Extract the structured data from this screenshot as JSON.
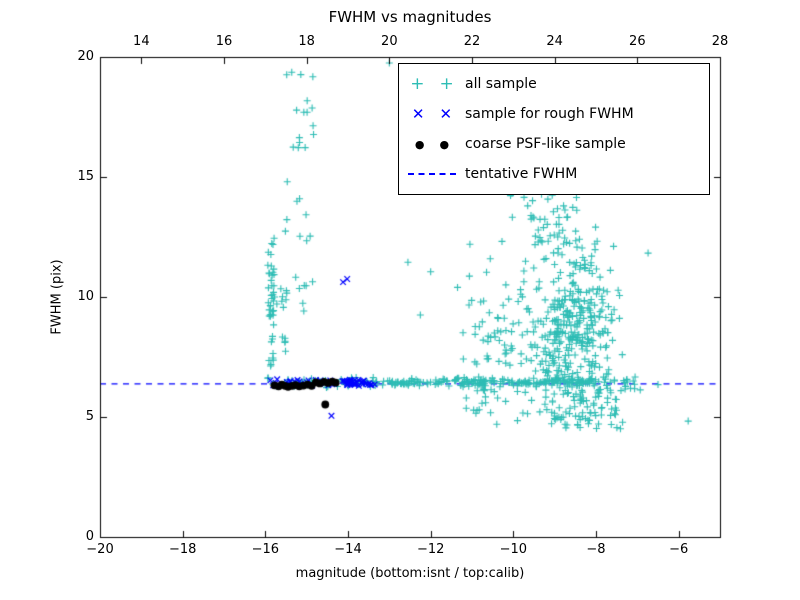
{
  "chart_data": {
    "type": "scatter",
    "title": "FWHM vs magnitudes",
    "xlabel": "magnitude (bottom:isnt / top:calib)",
    "ylabel": "FWHM (pix)",
    "bottom_axis": {
      "lim": [
        -20,
        -5
      ],
      "ticks": [
        -20,
        -18,
        -16,
        -14,
        -12,
        -10,
        -8,
        -6
      ],
      "tick_labels": [
        "−20",
        "−18",
        "−16",
        "−14",
        "−12",
        "−10",
        "−8",
        "−6"
      ]
    },
    "top_axis": {
      "lim": [
        13,
        28
      ],
      "ticks": [
        14,
        16,
        18,
        20,
        22,
        24,
        26,
        28
      ],
      "tick_labels": [
        "14",
        "16",
        "18",
        "20",
        "22",
        "24",
        "26",
        "28"
      ]
    },
    "y_axis": {
      "lim": [
        0,
        20
      ],
      "ticks": [
        0,
        5,
        10,
        15,
        20
      ],
      "tick_labels": [
        "0",
        "5",
        "10",
        "15",
        "20"
      ]
    },
    "reference_line": {
      "label": "tentative FWHM",
      "y": 6.4,
      "color": "#0000ff",
      "style": "dashed"
    },
    "legend": [
      {
        "label": "all sample",
        "marker": "plus",
        "color": "#2ebdb5"
      },
      {
        "label": "sample for rough FWHM",
        "marker": "cross",
        "color": "#0000ff"
      },
      {
        "label": "coarse PSF-like sample",
        "marker": "dot",
        "color": "#000000"
      },
      {
        "label": "tentative FWHM",
        "marker": "dashed-line",
        "color": "#0000ff"
      }
    ],
    "series": [
      {
        "name": "all sample",
        "marker": "plus",
        "color": "#2ebdb5",
        "clusters": [
          {
            "n": 28,
            "x": {
              "min": -15.95,
              "max": -14.55
            },
            "y": {
              "mean": 6.42,
              "sd": 0.09
            }
          },
          {
            "n": 235,
            "x": {
              "min": -14.55,
              "max": -7.85
            },
            "y": {
              "mean": 6.45,
              "sd": 0.09
            }
          },
          {
            "n": 46,
            "x": {
              "mean": -15.85,
              "sd": 0.05
            },
            "y": {
              "min": 6.6,
              "max": 12.5
            }
          },
          {
            "n": 12,
            "x": {
              "mean": -15.52,
              "sd": 0.05
            },
            "y": {
              "min": 7.6,
              "max": 10.6
            }
          },
          {
            "n": 22,
            "x": {
              "min": -15.6,
              "max": -14.78
            },
            "y": {
              "min": 12.6,
              "max": 19.5
            }
          },
          {
            "n": 10,
            "x": {
              "min": -15.3,
              "max": -14.85
            },
            "y": {
              "min": 9.0,
              "max": 12.6
            }
          },
          {
            "n": 390,
            "x": {
              "mean": -8.55,
              "sd": 0.52
            },
            "y": {
              "mean": 8.7,
              "sd": 1.9
            },
            "clip": {
              "x": [
                -11.5,
                -7.3
              ],
              "y": [
                4.6,
                15.3
              ]
            }
          },
          {
            "n": 70,
            "x": {
              "min": -11.25,
              "max": -9.6
            },
            "y": {
              "mean": 8.2,
              "sd": 1.7
            },
            "clip": {
              "y": [
                5.0,
                13.0
              ]
            }
          },
          {
            "n": 50,
            "x": {
              "mean": -9.2,
              "sd": 0.65
            },
            "y": {
              "min": 12.2,
              "max": 15.1
            },
            "clip": {
              "x": [
                -10.8,
                -7.7
              ]
            }
          },
          {
            "n": 42,
            "x": {
              "min": -8.9,
              "max": -7.35
            },
            "y": {
              "min": 4.5,
              "max": 6.15
            }
          },
          {
            "n": 20,
            "x": {
              "min": -11.2,
              "max": -9.0
            },
            "y": {
              "min": 5.1,
              "max": 6.15
            }
          },
          {
            "n": 22,
            "x": {
              "min": -7.9,
              "max": -7.0
            },
            "y": {
              "mean": 6.4,
              "sd": 0.22
            }
          },
          {
            "n": 7,
            "x": {
              "min": -9.9,
              "max": -8.3
            },
            "y": {
              "min": 14.9,
              "max": 15.7
            }
          }
        ],
        "points": [
          [
            -13.0,
            19.75
          ],
          [
            -12.55,
            11.45
          ],
          [
            -12.0,
            11.05
          ],
          [
            -11.35,
            10.4
          ],
          [
            -12.25,
            9.25
          ],
          [
            -11.05,
            12.2
          ],
          [
            -6.74,
            11.83
          ],
          [
            -5.77,
            4.83
          ],
          [
            -6.93,
            6.13
          ],
          [
            -6.5,
            6.35
          ],
          [
            -7.1,
            6.5
          ],
          [
            -10.4,
            4.7
          ],
          [
            -9.9,
            4.85
          ]
        ]
      },
      {
        "name": "sample for rough FWHM",
        "marker": "cross",
        "color": "#0000ff",
        "clusters": [
          {
            "n": 34,
            "x": {
              "min": -15.88,
              "max": -13.4
            },
            "y": {
              "min": 6.3,
              "max": 6.58
            }
          },
          {
            "n": 26,
            "x": {
              "min": -14.1,
              "max": -13.35
            },
            "y": {
              "min": 6.32,
              "max": 6.55
            }
          }
        ],
        "points": [
          [
            -14.02,
            10.75
          ],
          [
            -14.12,
            10.62
          ],
          [
            -14.4,
            5.05
          ]
        ]
      },
      {
        "name": "coarse PSF-like sample",
        "marker": "dot",
        "color": "#000000",
        "clusters": [],
        "points": [
          [
            -15.78,
            6.32
          ],
          [
            -15.68,
            6.28
          ],
          [
            -15.6,
            6.35
          ],
          [
            -15.52,
            6.3
          ],
          [
            -15.45,
            6.26
          ],
          [
            -15.35,
            6.3
          ],
          [
            -15.27,
            6.33
          ],
          [
            -15.18,
            6.28
          ],
          [
            -15.08,
            6.31
          ],
          [
            -14.98,
            6.35
          ],
          [
            -14.88,
            6.3
          ],
          [
            -14.78,
            6.44
          ],
          [
            -14.68,
            6.4
          ],
          [
            -14.58,
            6.46
          ],
          [
            -14.48,
            6.42
          ],
          [
            -14.38,
            6.47
          ],
          [
            -14.3,
            6.43
          ],
          [
            -14.55,
            5.52
          ]
        ]
      }
    ]
  }
}
